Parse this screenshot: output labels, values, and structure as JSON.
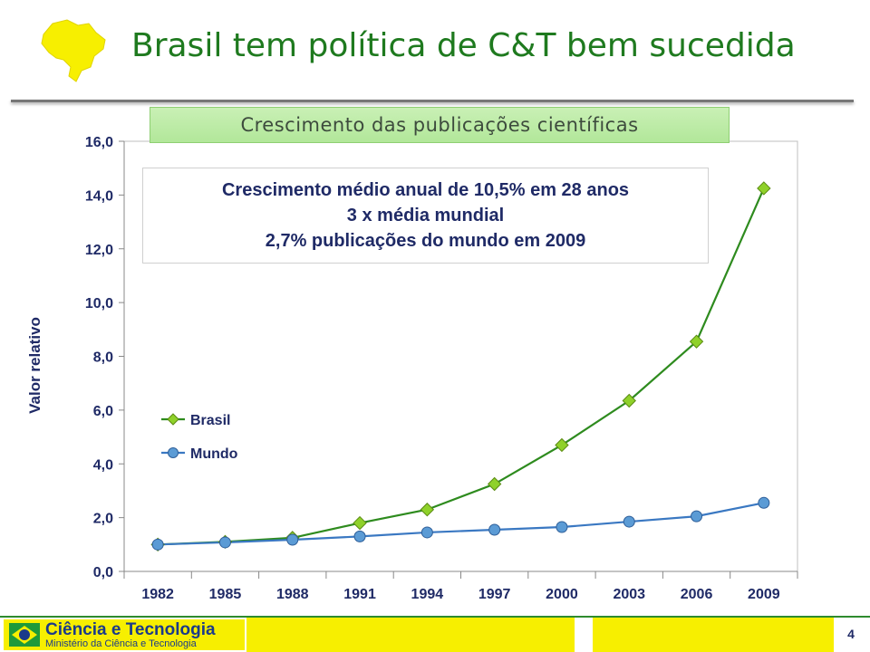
{
  "slide": {
    "title": "Brasil tem política de C&T bem sucedida",
    "subtitle": "Crescimento das publicações científicas",
    "annotation_lines": [
      "Crescimento médio anual de 10,5% em 28 anos",
      "3 x média mundial",
      "2,7% publicações do mundo em 2009"
    ],
    "page_number": "4"
  },
  "footer": {
    "logo_title": "Ciência e Tecnologia",
    "logo_subtitle": "Ministério da Ciência e Tecnologia"
  },
  "chart_data": {
    "type": "line",
    "categories": [
      "1982",
      "1985",
      "1988",
      "1991",
      "1994",
      "1997",
      "2000",
      "2003",
      "2006",
      "2009"
    ],
    "ylabel": "Valor relativo",
    "ylim": [
      0,
      16
    ],
    "yticks": [
      "0,0",
      "2,0",
      "4,0",
      "6,0",
      "8,0",
      "10,0",
      "12,0",
      "14,0",
      "16,0"
    ],
    "grid": false,
    "legend_position": "left-middle",
    "series": [
      {
        "name": "Brasil",
        "color": "#2e8b1e",
        "marker": "diamond",
        "marker_color": "#8fd12a",
        "values": [
          1.0,
          1.1,
          1.25,
          1.8,
          2.3,
          3.25,
          4.7,
          6.35,
          8.55,
          14.25
        ]
      },
      {
        "name": "Mundo",
        "color": "#3a78c2",
        "marker": "circle",
        "marker_color": "#5b9bd5",
        "values": [
          1.0,
          1.08,
          1.18,
          1.3,
          1.45,
          1.55,
          1.65,
          1.85,
          2.05,
          2.55
        ]
      }
    ]
  }
}
